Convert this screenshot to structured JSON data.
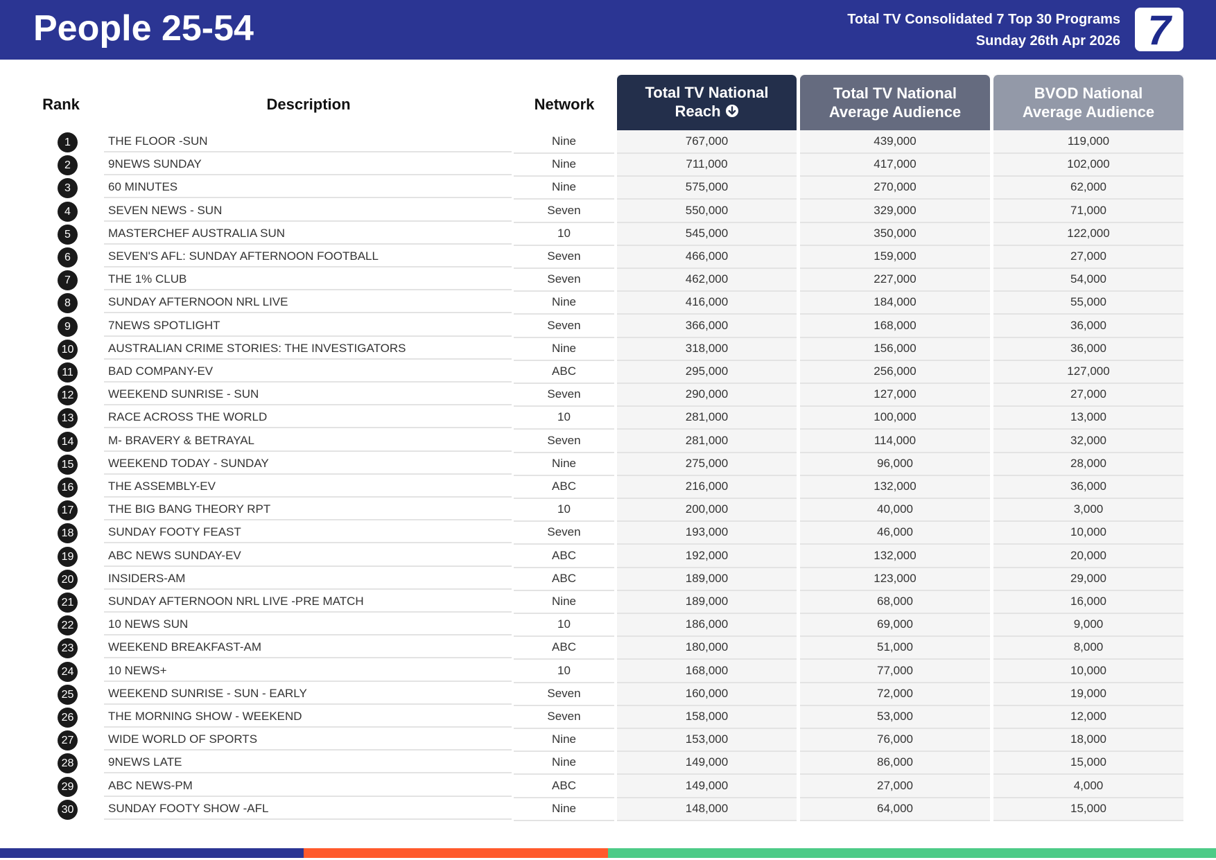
{
  "header": {
    "audience": "People 25-54",
    "report_line1": "Total TV Consolidated 7 Top 30 Programs",
    "report_line2": "Sunday 26th Apr 2026",
    "logo_text": "7",
    "brand_color": "#2B3593"
  },
  "columns": {
    "rank": "Rank",
    "description": "Description",
    "network": "Network",
    "reach_line1": "Total TV National",
    "reach_line2": "Reach",
    "avg_line1": "Total TV National",
    "avg_line2": "Average Audience",
    "bvod_line1": "BVOD National",
    "bvod_line2": "Average Audience",
    "sort_icon": "arrow-down-circle-icon"
  },
  "rows": [
    {
      "rank": "1",
      "description": "THE FLOOR -SUN",
      "network": "Nine",
      "reach": "767,000",
      "avg": "439,000",
      "bvod": "119,000"
    },
    {
      "rank": "2",
      "description": "9NEWS SUNDAY",
      "network": "Nine",
      "reach": "711,000",
      "avg": "417,000",
      "bvod": "102,000"
    },
    {
      "rank": "3",
      "description": "60 MINUTES",
      "network": "Nine",
      "reach": "575,000",
      "avg": "270,000",
      "bvod": "62,000"
    },
    {
      "rank": "4",
      "description": "SEVEN NEWS - SUN",
      "network": "Seven",
      "reach": "550,000",
      "avg": "329,000",
      "bvod": "71,000"
    },
    {
      "rank": "5",
      "description": "MASTERCHEF AUSTRALIA SUN",
      "network": "10",
      "reach": "545,000",
      "avg": "350,000",
      "bvod": "122,000"
    },
    {
      "rank": "6",
      "description": "SEVEN'S AFL: SUNDAY AFTERNOON FOOTBALL",
      "network": "Seven",
      "reach": "466,000",
      "avg": "159,000",
      "bvod": "27,000"
    },
    {
      "rank": "7",
      "description": "THE 1% CLUB",
      "network": "Seven",
      "reach": "462,000",
      "avg": "227,000",
      "bvod": "54,000"
    },
    {
      "rank": "8",
      "description": "SUNDAY AFTERNOON NRL LIVE",
      "network": "Nine",
      "reach": "416,000",
      "avg": "184,000",
      "bvod": "55,000"
    },
    {
      "rank": "9",
      "description": "7NEWS SPOTLIGHT",
      "network": "Seven",
      "reach": "366,000",
      "avg": "168,000",
      "bvod": "36,000"
    },
    {
      "rank": "10",
      "description": "AUSTRALIAN CRIME STORIES: THE INVESTIGATORS",
      "network": "Nine",
      "reach": "318,000",
      "avg": "156,000",
      "bvod": "36,000"
    },
    {
      "rank": "11",
      "description": "BAD COMPANY-EV",
      "network": "ABC",
      "reach": "295,000",
      "avg": "256,000",
      "bvod": "127,000"
    },
    {
      "rank": "12",
      "description": "WEEKEND SUNRISE - SUN",
      "network": "Seven",
      "reach": "290,000",
      "avg": "127,000",
      "bvod": "27,000"
    },
    {
      "rank": "13",
      "description": "RACE ACROSS THE WORLD",
      "network": "10",
      "reach": "281,000",
      "avg": "100,000",
      "bvod": "13,000"
    },
    {
      "rank": "14",
      "description": "M- BRAVERY & BETRAYAL",
      "network": "Seven",
      "reach": "281,000",
      "avg": "114,000",
      "bvod": "32,000"
    },
    {
      "rank": "15",
      "description": "WEEKEND TODAY - SUNDAY",
      "network": "Nine",
      "reach": "275,000",
      "avg": "96,000",
      "bvod": "28,000"
    },
    {
      "rank": "16",
      "description": "THE ASSEMBLY-EV",
      "network": "ABC",
      "reach": "216,000",
      "avg": "132,000",
      "bvod": "36,000"
    },
    {
      "rank": "17",
      "description": "THE BIG BANG THEORY RPT",
      "network": "10",
      "reach": "200,000",
      "avg": "40,000",
      "bvod": "3,000"
    },
    {
      "rank": "18",
      "description": "SUNDAY FOOTY FEAST",
      "network": "Seven",
      "reach": "193,000",
      "avg": "46,000",
      "bvod": "10,000"
    },
    {
      "rank": "19",
      "description": "ABC NEWS SUNDAY-EV",
      "network": "ABC",
      "reach": "192,000",
      "avg": "132,000",
      "bvod": "20,000"
    },
    {
      "rank": "20",
      "description": "INSIDERS-AM",
      "network": "ABC",
      "reach": "189,000",
      "avg": "123,000",
      "bvod": "29,000"
    },
    {
      "rank": "21",
      "description": "SUNDAY AFTERNOON NRL LIVE -PRE MATCH",
      "network": "Nine",
      "reach": "189,000",
      "avg": "68,000",
      "bvod": "16,000"
    },
    {
      "rank": "22",
      "description": "10 NEWS SUN",
      "network": "10",
      "reach": "186,000",
      "avg": "69,000",
      "bvod": "9,000"
    },
    {
      "rank": "23",
      "description": "WEEKEND BREAKFAST-AM",
      "network": "ABC",
      "reach": "180,000",
      "avg": "51,000",
      "bvod": "8,000"
    },
    {
      "rank": "24",
      "description": "10 NEWS+",
      "network": "10",
      "reach": "168,000",
      "avg": "77,000",
      "bvod": "10,000"
    },
    {
      "rank": "25",
      "description": "WEEKEND SUNRISE - SUN - EARLY",
      "network": "Seven",
      "reach": "160,000",
      "avg": "72,000",
      "bvod": "19,000"
    },
    {
      "rank": "26",
      "description": "THE MORNING SHOW - WEEKEND",
      "network": "Seven",
      "reach": "158,000",
      "avg": "53,000",
      "bvod": "12,000"
    },
    {
      "rank": "27",
      "description": "WIDE WORLD OF SPORTS",
      "network": "Nine",
      "reach": "153,000",
      "avg": "76,000",
      "bvod": "18,000"
    },
    {
      "rank": "28",
      "description": "9NEWS LATE",
      "network": "Nine",
      "reach": "149,000",
      "avg": "86,000",
      "bvod": "15,000"
    },
    {
      "rank": "29",
      "description": "ABC NEWS-PM",
      "network": "ABC",
      "reach": "149,000",
      "avg": "27,000",
      "bvod": "4,000"
    },
    {
      "rank": "30",
      "description": "SUNDAY FOOTY SHOW -AFL",
      "network": "Nine",
      "reach": "148,000",
      "avg": "64,000",
      "bvod": "15,000"
    }
  ],
  "footer_colors": [
    "#2B3593",
    "#FF5A2C",
    "#4CCB87"
  ]
}
